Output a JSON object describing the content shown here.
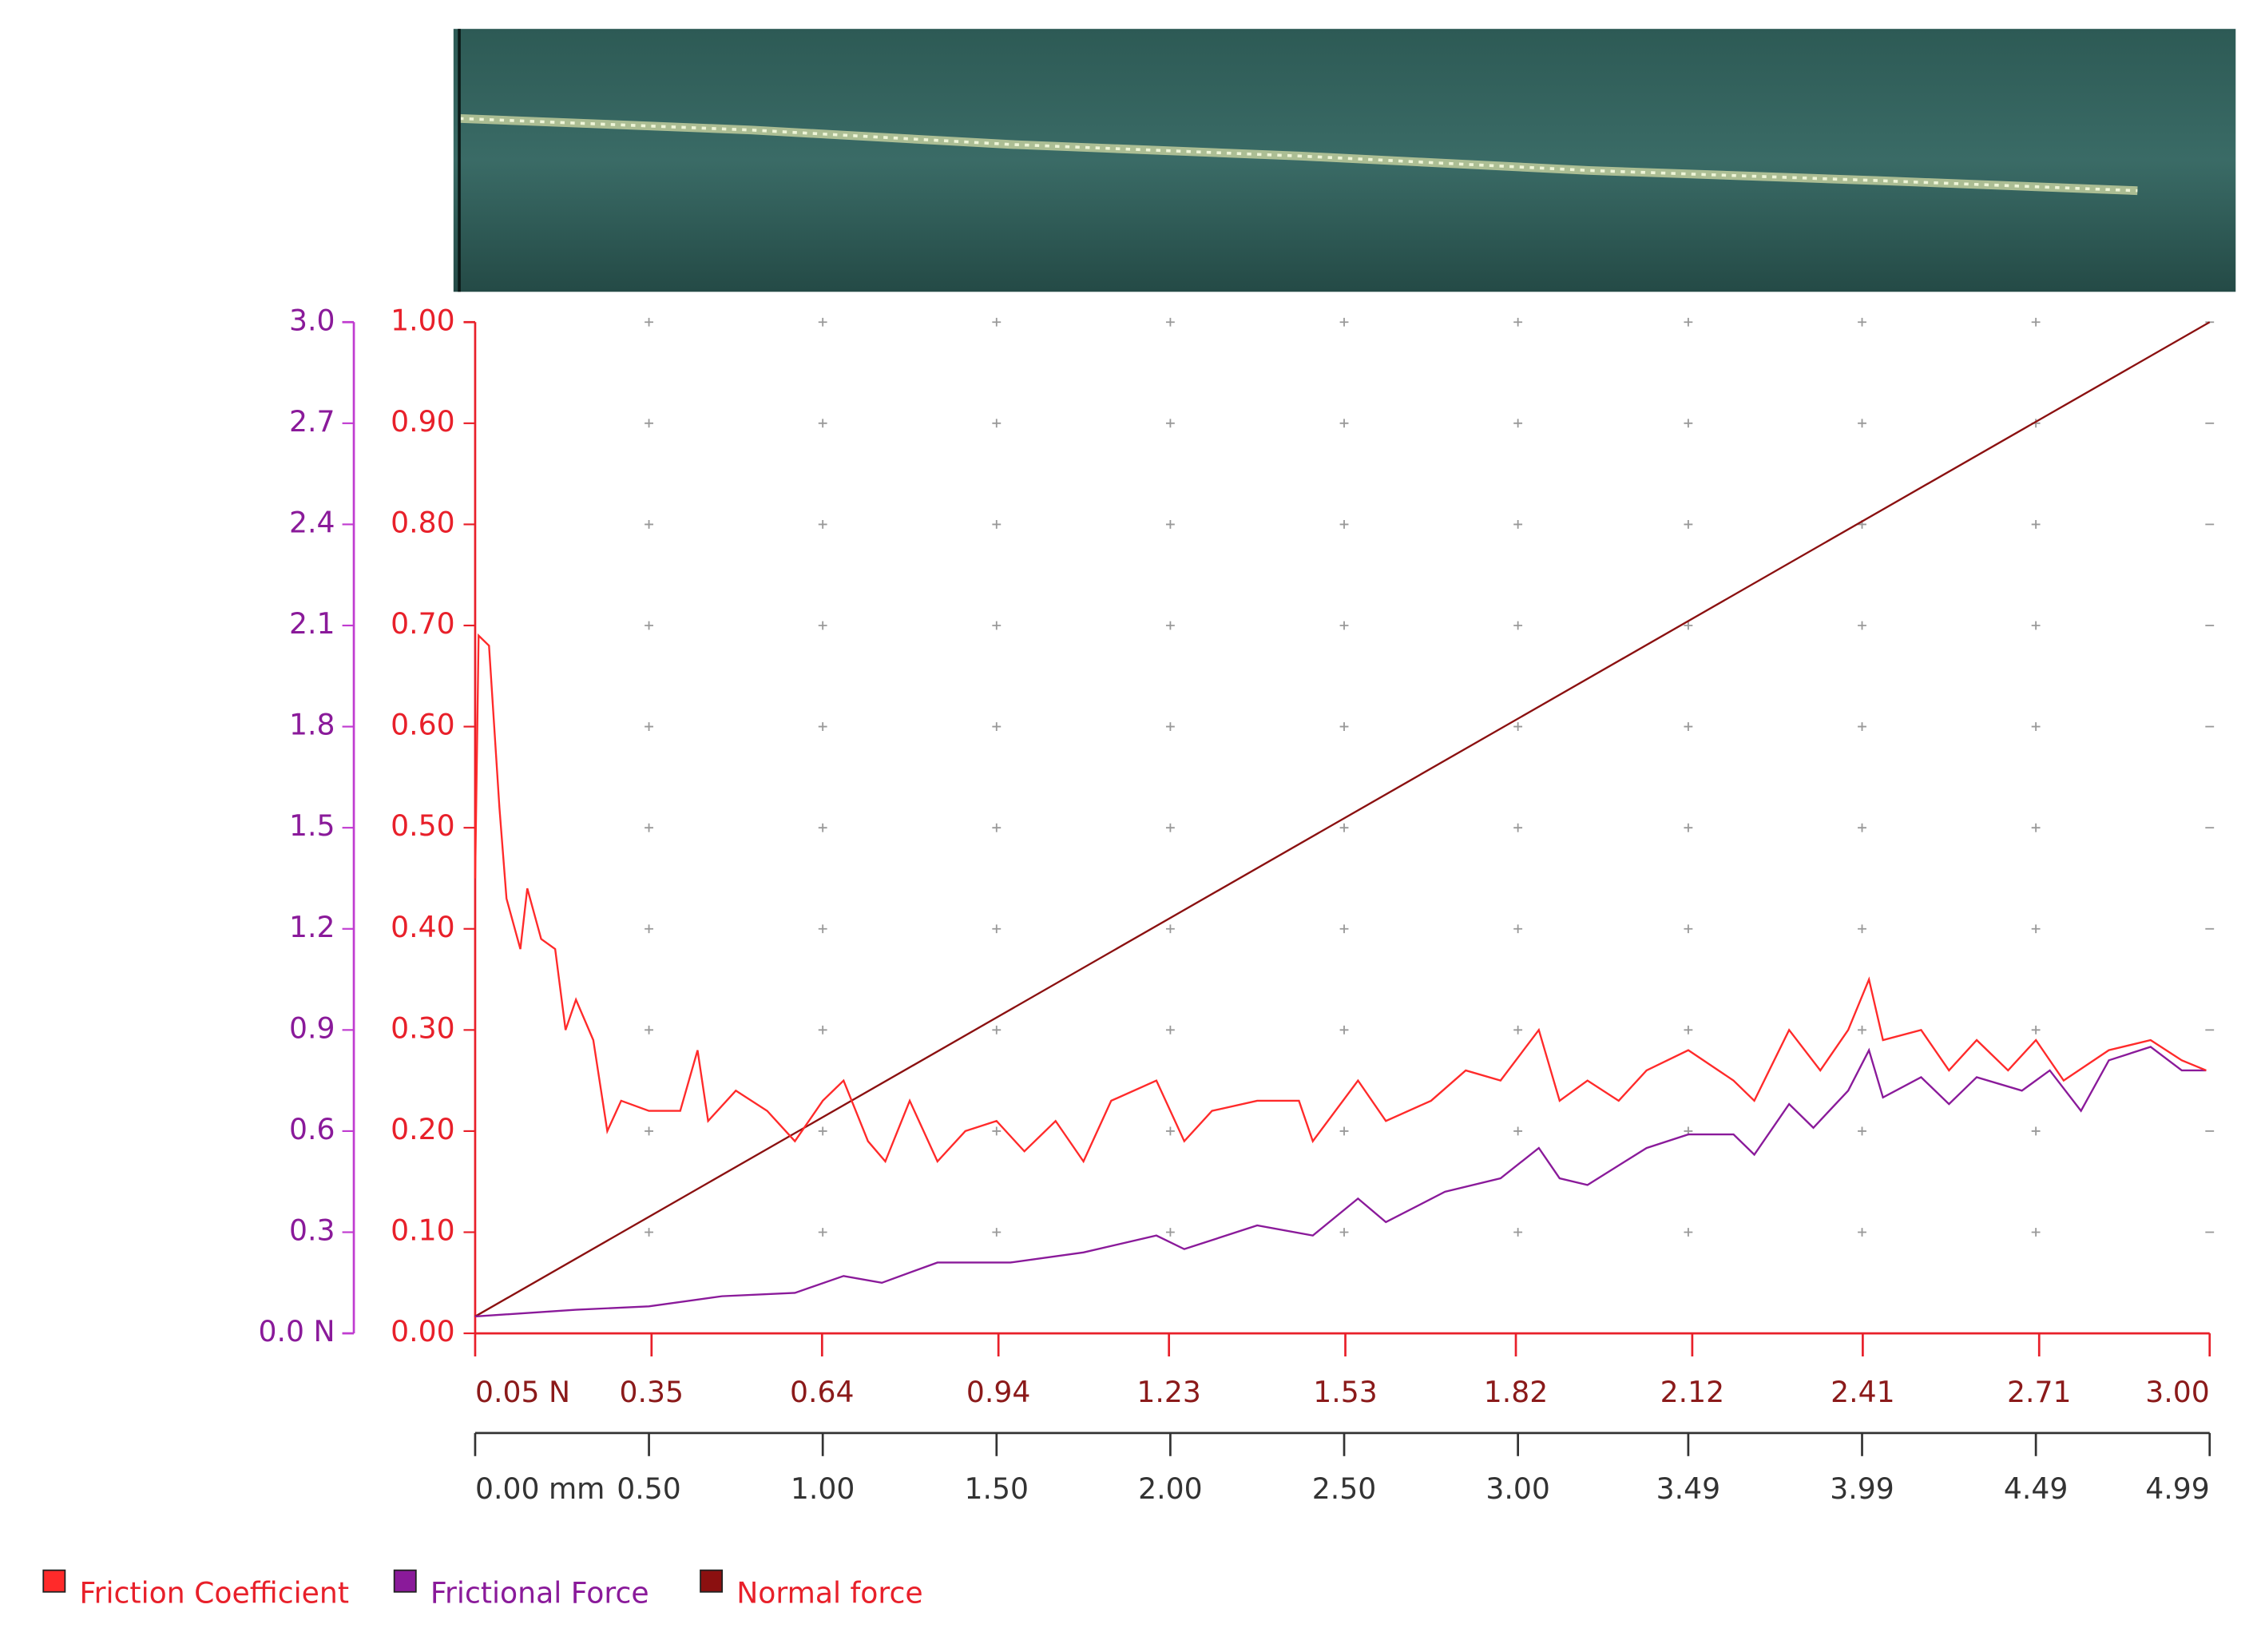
{
  "chart_data": {
    "type": "line",
    "xlim": [
      0,
      4.99
    ],
    "xticks": [
      {
        "value": 0,
        "label": "0.00 mm"
      },
      {
        "value": 0.5,
        "label": "0.50"
      },
      {
        "value": 1,
        "label": "1.00"
      },
      {
        "value": 1.5,
        "label": "1.50"
      },
      {
        "value": 2,
        "label": "2.00"
      },
      {
        "value": 2.5,
        "label": "2.50"
      },
      {
        "value": 3,
        "label": "3.00"
      },
      {
        "value": 3.49,
        "label": "3.49"
      },
      {
        "value": 3.99,
        "label": "3.99"
      },
      {
        "value": 4.49,
        "label": "4.49"
      },
      {
        "value": 4.99,
        "label": "4.99"
      }
    ],
    "x2lim": [
      0.05,
      3.0
    ],
    "x2ticks": [
      {
        "value": 0.05,
        "label": "0.05 N"
      },
      {
        "value": 0.35,
        "label": "0.35"
      },
      {
        "value": 0.64,
        "label": "0.64"
      },
      {
        "value": 0.94,
        "label": "0.94"
      },
      {
        "value": 1.23,
        "label": "1.23"
      },
      {
        "value": 1.53,
        "label": "1.53"
      },
      {
        "value": 1.82,
        "label": "1.82"
      },
      {
        "value": 2.12,
        "label": "2.12"
      },
      {
        "value": 2.41,
        "label": "2.41"
      },
      {
        "value": 2.71,
        "label": "2.71"
      },
      {
        "value": 3.0,
        "label": "3.00"
      }
    ],
    "ylim": [
      0,
      1.0
    ],
    "yticks": [
      {
        "value": 0,
        "label": "0.00"
      },
      {
        "value": 0.1,
        "label": "0.10"
      },
      {
        "value": 0.2,
        "label": "0.20"
      },
      {
        "value": 0.3,
        "label": "0.30"
      },
      {
        "value": 0.4,
        "label": "0.40"
      },
      {
        "value": 0.5,
        "label": "0.50"
      },
      {
        "value": 0.6,
        "label": "0.60"
      },
      {
        "value": 0.7,
        "label": "0.70"
      },
      {
        "value": 0.8,
        "label": "0.80"
      },
      {
        "value": 0.9,
        "label": "0.90"
      },
      {
        "value": 1.0,
        "label": "1.00"
      }
    ],
    "y2lim": [
      0,
      3.0
    ],
    "y2ticks": [
      {
        "value": 0,
        "label": "0.0 N"
      },
      0.3,
      0.6,
      0.9,
      1.2,
      1.5,
      1.8,
      2.1,
      2.4,
      2.7,
      {
        "value": 3.0,
        "label": "3.0"
      }
    ],
    "grid": true,
    "series": [
      {
        "name": "Friction Coefficient",
        "color": "#ff2a2a",
        "x": [
          0.0,
          0.01,
          0.04,
          0.07,
          0.09,
          0.13,
          0.15,
          0.19,
          0.23,
          0.26,
          0.29,
          0.34,
          0.38,
          0.42,
          0.5,
          0.59,
          0.64,
          0.67,
          0.75,
          0.84,
          0.92,
          1.0,
          1.06,
          1.13,
          1.18,
          1.25,
          1.33,
          1.41,
          1.5,
          1.58,
          1.67,
          1.75,
          1.83,
          1.96,
          2.04,
          2.12,
          2.25,
          2.37,
          2.41,
          2.54,
          2.62,
          2.75,
          2.85,
          2.95,
          3.06,
          3.12,
          3.2,
          3.29,
          3.37,
          3.49,
          3.62,
          3.68,
          3.78,
          3.87,
          3.95,
          4.01,
          4.05,
          4.16,
          4.24,
          4.32,
          4.41,
          4.49,
          4.57,
          4.7,
          4.82,
          4.91,
          4.98
        ],
        "values": [
          0.45,
          0.69,
          0.68,
          0.52,
          0.43,
          0.38,
          0.44,
          0.39,
          0.38,
          0.3,
          0.33,
          0.29,
          0.2,
          0.23,
          0.22,
          0.22,
          0.28,
          0.21,
          0.24,
          0.22,
          0.19,
          0.23,
          0.25,
          0.19,
          0.17,
          0.23,
          0.17,
          0.2,
          0.21,
          0.18,
          0.21,
          0.17,
          0.23,
          0.25,
          0.19,
          0.22,
          0.23,
          0.23,
          0.19,
          0.25,
          0.21,
          0.23,
          0.26,
          0.25,
          0.3,
          0.23,
          0.25,
          0.23,
          0.26,
          0.28,
          0.25,
          0.23,
          0.3,
          0.26,
          0.3,
          0.35,
          0.29,
          0.3,
          0.26,
          0.29,
          0.26,
          0.29,
          0.25,
          0.28,
          0.29,
          0.27,
          0.26
        ]
      },
      {
        "name": "Frictional Force",
        "color": "#8a1a9a",
        "axis": "y2",
        "x": [
          0.0,
          0.29,
          0.5,
          0.71,
          0.92,
          1.06,
          1.17,
          1.33,
          1.54,
          1.75,
          1.96,
          2.04,
          2.25,
          2.41,
          2.54,
          2.62,
          2.79,
          2.95,
          3.06,
          3.12,
          3.2,
          3.37,
          3.49,
          3.62,
          3.68,
          3.78,
          3.85,
          3.95,
          4.01,
          4.05,
          4.16,
          4.24,
          4.32,
          4.45,
          4.53,
          4.62,
          4.7,
          4.82,
          4.91,
          4.98
        ],
        "values": [
          0.05,
          0.07,
          0.08,
          0.11,
          0.12,
          0.17,
          0.15,
          0.21,
          0.21,
          0.24,
          0.29,
          0.25,
          0.32,
          0.29,
          0.4,
          0.33,
          0.42,
          0.46,
          0.55,
          0.46,
          0.44,
          0.55,
          0.59,
          0.59,
          0.53,
          0.68,
          0.61,
          0.72,
          0.84,
          0.7,
          0.76,
          0.68,
          0.76,
          0.72,
          0.78,
          0.66,
          0.81,
          0.85,
          0.78,
          0.78
        ]
      },
      {
        "name": "Normal force",
        "color": "#8b1010",
        "axis": "y2",
        "x": [
          0,
          4.99
        ],
        "values": [
          0.05,
          3.0
        ]
      }
    ]
  }
}
